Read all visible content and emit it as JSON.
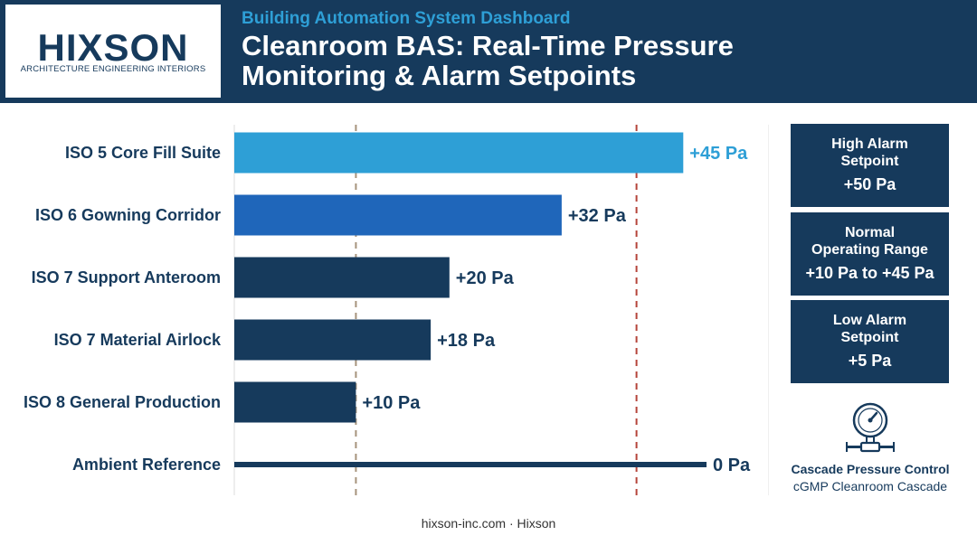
{
  "header": {
    "logo": "HIXSON",
    "logo_tagline": "ARCHITECTURE ENGINEERING INTERIORS",
    "eyebrow": "Building Automation System Dashboard",
    "title_line1": "Cleanroom BAS: Real-Time Pressure",
    "title_line2": "Monitoring & Alarm Setpoints"
  },
  "chart_data": {
    "type": "bar",
    "orientation": "horizontal",
    "categories": [
      "ISO 5 Core Fill Suite",
      "ISO 6 Gowning Corridor",
      "ISO 7 Support Anteroom",
      "ISO 7 Material Airlock",
      "ISO 8 General Production",
      "Ambient Reference"
    ],
    "values": [
      45,
      32,
      20,
      18,
      10,
      0
    ],
    "value_labels": [
      "+45 Pa",
      "+32 Pa",
      "+20 Pa",
      "+18 Pa",
      "+10 Pa",
      "0 Pa"
    ],
    "unit": "Pa",
    "xlim": [
      -3,
      50
    ],
    "grid": false,
    "reference_lines": [
      {
        "value": 10,
        "style": "dashed",
        "color": "#a6937c"
      },
      {
        "value": 40,
        "style": "dashed",
        "color": "#b5443a"
      }
    ],
    "colors": [
      "#2e9fd6",
      "#1f66ba",
      "#163a5c",
      "#163a5c",
      "#163a5c",
      "#163a5c"
    ]
  },
  "sidebar": {
    "high_alarm": {
      "label_line1": "High Alarm",
      "label_line2": "Setpoint",
      "value": "+50 Pa"
    },
    "normal_range": {
      "label_line1": "Normal",
      "label_line2": "Operating Range",
      "value": "+10 Pa to +45 Pa"
    },
    "low_alarm": {
      "label_line1": "Low Alarm",
      "label_line2": "Setpoint",
      "value": "+5 Pa"
    },
    "gauge_icon": "pressure-gauge-icon",
    "gauge_title": "Cascade Pressure Control",
    "gauge_subtitle": "cGMP Cleanroom Cascade"
  },
  "footer": {
    "text": "hixson-inc.com · Hixson"
  },
  "colors": {
    "navy": "#163a5c",
    "accent": "#2e9fd6",
    "blue": "#1f66ba"
  }
}
